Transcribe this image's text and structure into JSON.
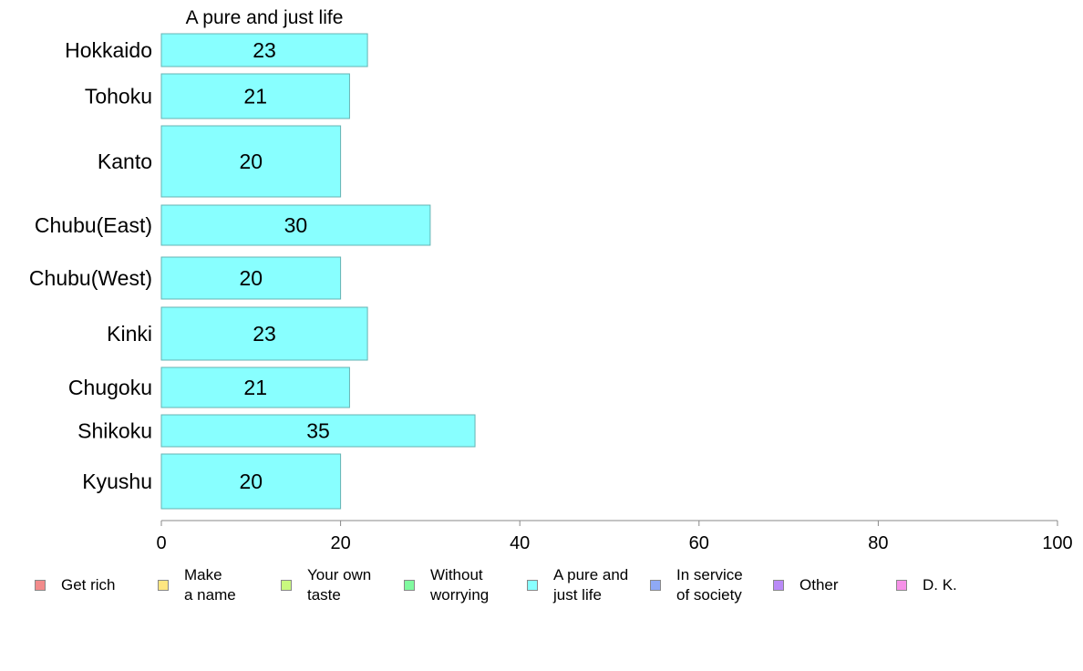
{
  "chart_data": {
    "type": "bar",
    "orientation": "horizontal",
    "title": "A pure and just life",
    "xlabel": "",
    "ylabel": "",
    "categories": [
      "Hokkaido",
      "Tohoku",
      "Kanto",
      "Chubu(East)",
      "Chubu(West)",
      "Kinki",
      "Chugoku",
      "Shikoku",
      "Kyushu"
    ],
    "values": [
      23,
      21,
      20,
      30,
      20,
      23,
      21,
      35,
      20
    ],
    "value_labels": [
      "23",
      "21",
      "20",
      "30",
      "20",
      "23",
      "21",
      "35",
      "20"
    ],
    "xlim": [
      0,
      100
    ],
    "xticks": [
      "0",
      "20",
      "40",
      "60",
      "80",
      "100"
    ],
    "grid": false,
    "bar_color": "#88ffff",
    "bar_edge_color": "#66b3b3",
    "legend_position": "bottom",
    "legend": [
      {
        "label": "Get rich",
        "color": "#f28b8b"
      },
      {
        "label": "Make\na name",
        "color": "#ffe680"
      },
      {
        "label": "Your own\ntaste",
        "color": "#c9f97f"
      },
      {
        "label": "Without\nworrying",
        "color": "#80fa9f"
      },
      {
        "label": "A pure and\njust life",
        "color": "#88ffff"
      },
      {
        "label": "In service\nof society",
        "color": "#8fa9f5"
      },
      {
        "label": "Other",
        "color": "#b98af7"
      },
      {
        "label": "D. K.",
        "color": "#f691e8"
      }
    ]
  }
}
